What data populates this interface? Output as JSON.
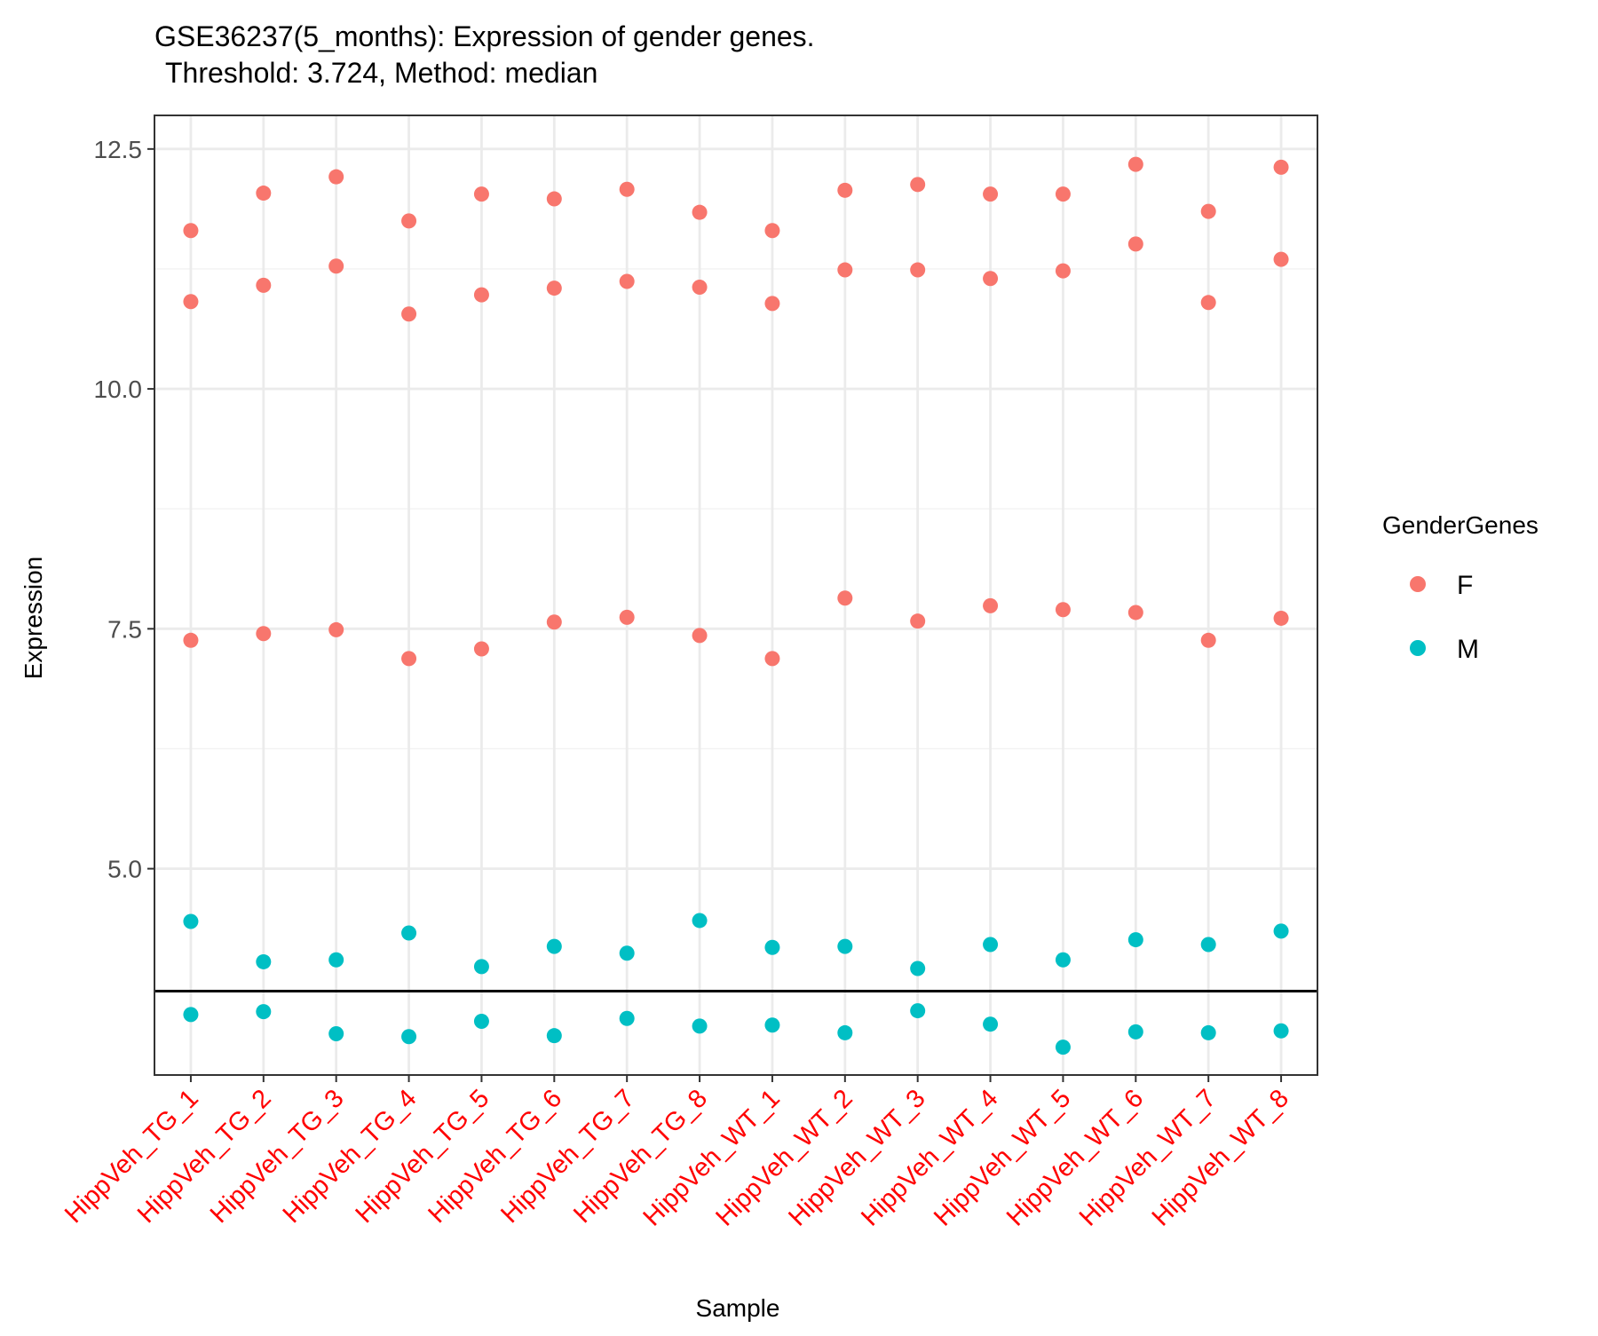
{
  "chart_data": {
    "type": "scatter",
    "title": "GSE36237(5_months): Expression of gender genes.",
    "subtitle": "Threshold: 3.724, Method: median",
    "xlabel": "Sample",
    "ylabel": "Expression",
    "ylim": [
      2.85,
      12.85
    ],
    "yticks": [
      5.0,
      7.5,
      10.0,
      12.5
    ],
    "ytick_labels": [
      "5.0",
      "7.5",
      "10.0",
      "12.5"
    ],
    "threshold": 3.724,
    "grid": true,
    "legend_position": "right",
    "legend_title": "GenderGenes",
    "x_tick_color": "#ff0000",
    "categories": [
      "HippVeh_TG_1",
      "HippVeh_TG_2",
      "HippVeh_TG_3",
      "HippVeh_TG_4",
      "HippVeh_TG_5",
      "HippVeh_TG_6",
      "HippVeh_TG_7",
      "HippVeh_TG_8",
      "HippVeh_WT_1",
      "HippVeh_WT_2",
      "HippVeh_WT_3",
      "HippVeh_WT_4",
      "HippVeh_WT_5",
      "HippVeh_WT_6",
      "HippVeh_WT_7",
      "HippVeh_WT_8"
    ],
    "series": [
      {
        "name": "F",
        "color": "#f8766d",
        "values": [
          [
            11.65,
            12.04,
            12.21,
            11.75,
            12.03,
            11.98,
            12.08,
            11.84,
            11.65,
            12.07,
            12.13,
            12.03,
            12.03,
            12.34,
            11.85,
            12.31
          ],
          [
            10.91,
            11.08,
            11.28,
            10.78,
            10.98,
            11.05,
            11.12,
            11.06,
            10.89,
            11.24,
            11.24,
            11.15,
            11.23,
            11.51,
            10.9,
            11.35
          ],
          [
            7.38,
            7.45,
            7.49,
            7.19,
            7.29,
            7.57,
            7.62,
            7.43,
            7.19,
            7.82,
            7.58,
            7.74,
            7.7,
            7.67,
            7.38,
            7.61
          ]
        ]
      },
      {
        "name": "M",
        "color": "#00bfc4",
        "values": [
          [
            4.45,
            4.03,
            4.05,
            4.33,
            3.98,
            4.19,
            4.12,
            4.46,
            4.18,
            4.19,
            3.96,
            4.21,
            4.05,
            4.26,
            4.21,
            4.35
          ],
          [
            3.48,
            3.51,
            3.28,
            3.25,
            3.41,
            3.26,
            3.44,
            3.36,
            3.37,
            3.29,
            3.52,
            3.38,
            3.14,
            3.3,
            3.29,
            3.31
          ]
        ]
      }
    ]
  }
}
